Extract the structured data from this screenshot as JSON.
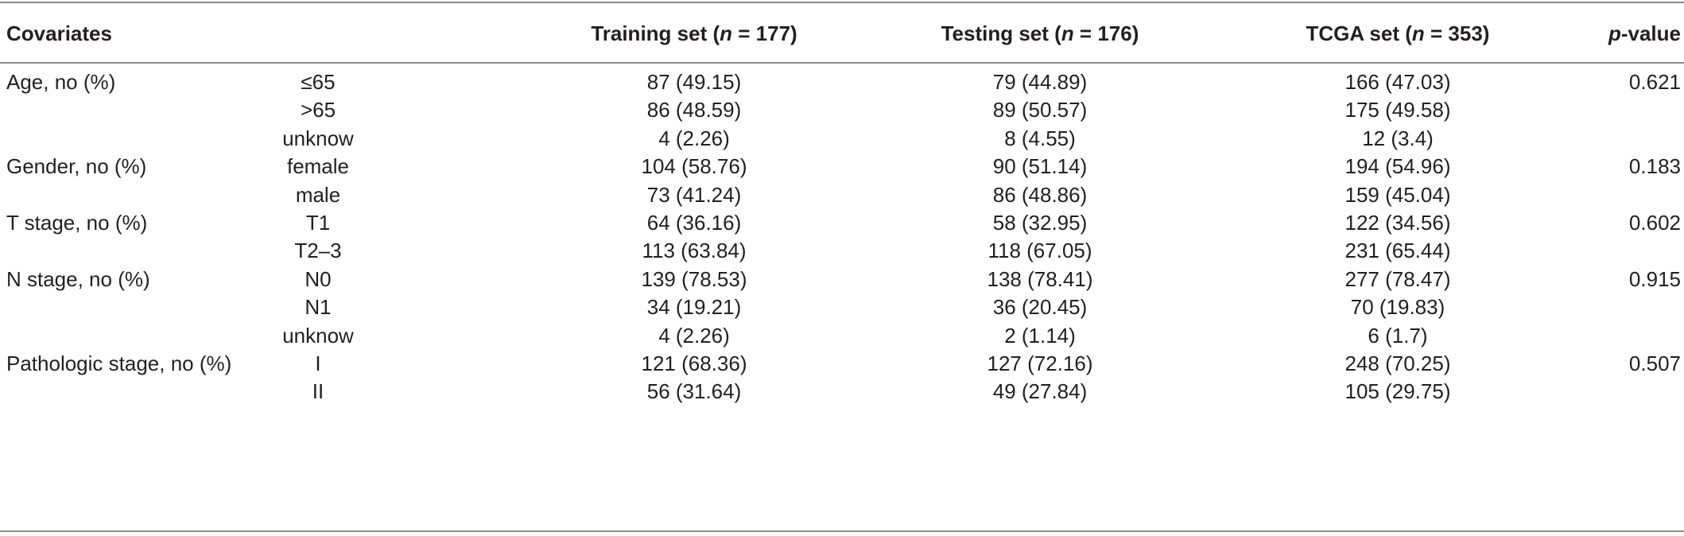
{
  "header": {
    "covariates": "Covariates",
    "training_pre": "Training set (",
    "training_n": "n",
    "training_post": " = 177)",
    "testing_pre": "Testing set (",
    "testing_n": "n",
    "testing_post": " = 176)",
    "tcga_pre": "TCGA set (",
    "tcga_n": "n",
    "tcga_post": " = 353)",
    "p_italic": "p",
    "p_rest": "-value"
  },
  "rows": [
    {
      "covariate": "Age, no (%)",
      "level": "≤65",
      "training": "87 (49.15)",
      "testing": "79 (44.89)",
      "tcga": "166 (47.03)",
      "p": "0.621"
    },
    {
      "covariate": "",
      "level": ">65",
      "training": "86 (48.59)",
      "testing": "89 (50.57)",
      "tcga": "175 (49.58)",
      "p": ""
    },
    {
      "covariate": "",
      "level": "unknow",
      "training": "4 (2.26)",
      "testing": "8 (4.55)",
      "tcga": "12 (3.4)",
      "p": ""
    },
    {
      "covariate": "Gender, no (%)",
      "level": "female",
      "training": "104 (58.76)",
      "testing": "90 (51.14)",
      "tcga": "194 (54.96)",
      "p": "0.183"
    },
    {
      "covariate": "",
      "level": "male",
      "training": "73 (41.24)",
      "testing": "86 (48.86)",
      "tcga": "159 (45.04)",
      "p": ""
    },
    {
      "covariate": "T stage, no (%)",
      "level": "T1",
      "training": "64 (36.16)",
      "testing": "58 (32.95)",
      "tcga": "122 (34.56)",
      "p": "0.602"
    },
    {
      "covariate": "",
      "level": "T2–3",
      "training": "113 (63.84)",
      "testing": "118 (67.05)",
      "tcga": "231 (65.44)",
      "p": ""
    },
    {
      "covariate": "N stage, no (%)",
      "level": "N0",
      "training": "139 (78.53)",
      "testing": "138 (78.41)",
      "tcga": "277 (78.47)",
      "p": "0.915"
    },
    {
      "covariate": "",
      "level": "N1",
      "training": "34 (19.21)",
      "testing": "36 (20.45)",
      "tcga": "70 (19.83)",
      "p": ""
    },
    {
      "covariate": "",
      "level": "unknow",
      "training": "4 (2.26)",
      "testing": "2 (1.14)",
      "tcga": "6 (1.7)",
      "p": ""
    },
    {
      "covariate": "Pathologic stage, no (%)",
      "level": "I",
      "training": "121 (68.36)",
      "testing": "127 (72.16)",
      "tcga": "248 (70.25)",
      "p": "0.507"
    },
    {
      "covariate": "",
      "level": "II",
      "training": "56 (31.64)",
      "testing": "49 (27.84)",
      "tcga": "105 (29.75)",
      "p": ""
    }
  ]
}
